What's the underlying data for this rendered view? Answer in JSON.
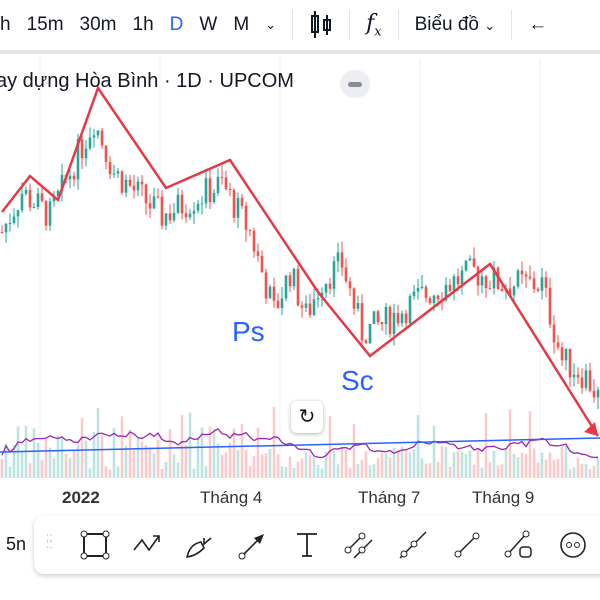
{
  "toolbar": {
    "timeframes": [
      "h",
      "15m",
      "30m",
      "1h",
      "D",
      "W",
      "M"
    ],
    "active": "D",
    "chart_type_label": "Biểu đồ",
    "fx_label": "f"
  },
  "symbol_title": "ay dựng Hòa Bình · 1D · UPCOM",
  "annotations": {
    "ps": "Ps",
    "sc": "Sc"
  },
  "x_axis": [
    "2022",
    "Tháng 4",
    "Tháng 7",
    "Tháng 9"
  ],
  "drawing_tools": {
    "interval_label": "5n",
    "items": [
      "rectangle",
      "path",
      "brush",
      "arrow",
      "text",
      "parallel-channel",
      "trend-line",
      "ray",
      "anchored-text",
      "circle"
    ]
  },
  "colors": {
    "up": "#26a69a",
    "down": "#ef5350",
    "zigzag": "#e53945",
    "accent": "#2962ff",
    "ma": "#9c27b0"
  },
  "chart_data": {
    "type": "candlestick",
    "bars": 150,
    "price_path": [
      [
        0,
        62
      ],
      [
        5,
        72
      ],
      [
        12,
        66
      ],
      [
        23,
        90
      ],
      [
        28,
        77
      ],
      [
        40,
        66
      ],
      [
        55,
        74
      ],
      [
        62,
        62
      ],
      [
        68,
        42
      ],
      [
        72,
        52
      ],
      [
        76,
        41
      ],
      [
        80,
        50
      ],
      [
        85,
        54
      ],
      [
        90,
        37
      ],
      [
        95,
        39
      ],
      [
        105,
        46
      ],
      [
        118,
        52
      ],
      [
        125,
        49
      ],
      [
        135,
        49
      ],
      [
        140,
        30
      ],
      [
        146,
        26
      ],
      [
        150,
        19
      ]
    ],
    "zigzag": [
      [
        0,
        67
      ],
      [
        7,
        76
      ],
      [
        14,
        70
      ],
      [
        24,
        98
      ],
      [
        41,
        73
      ],
      [
        57,
        80
      ],
      [
        79,
        47
      ],
      [
        92,
        31
      ],
      [
        122,
        54
      ],
      [
        149,
        11
      ]
    ],
    "ylim": [
      0,
      105
    ]
  }
}
